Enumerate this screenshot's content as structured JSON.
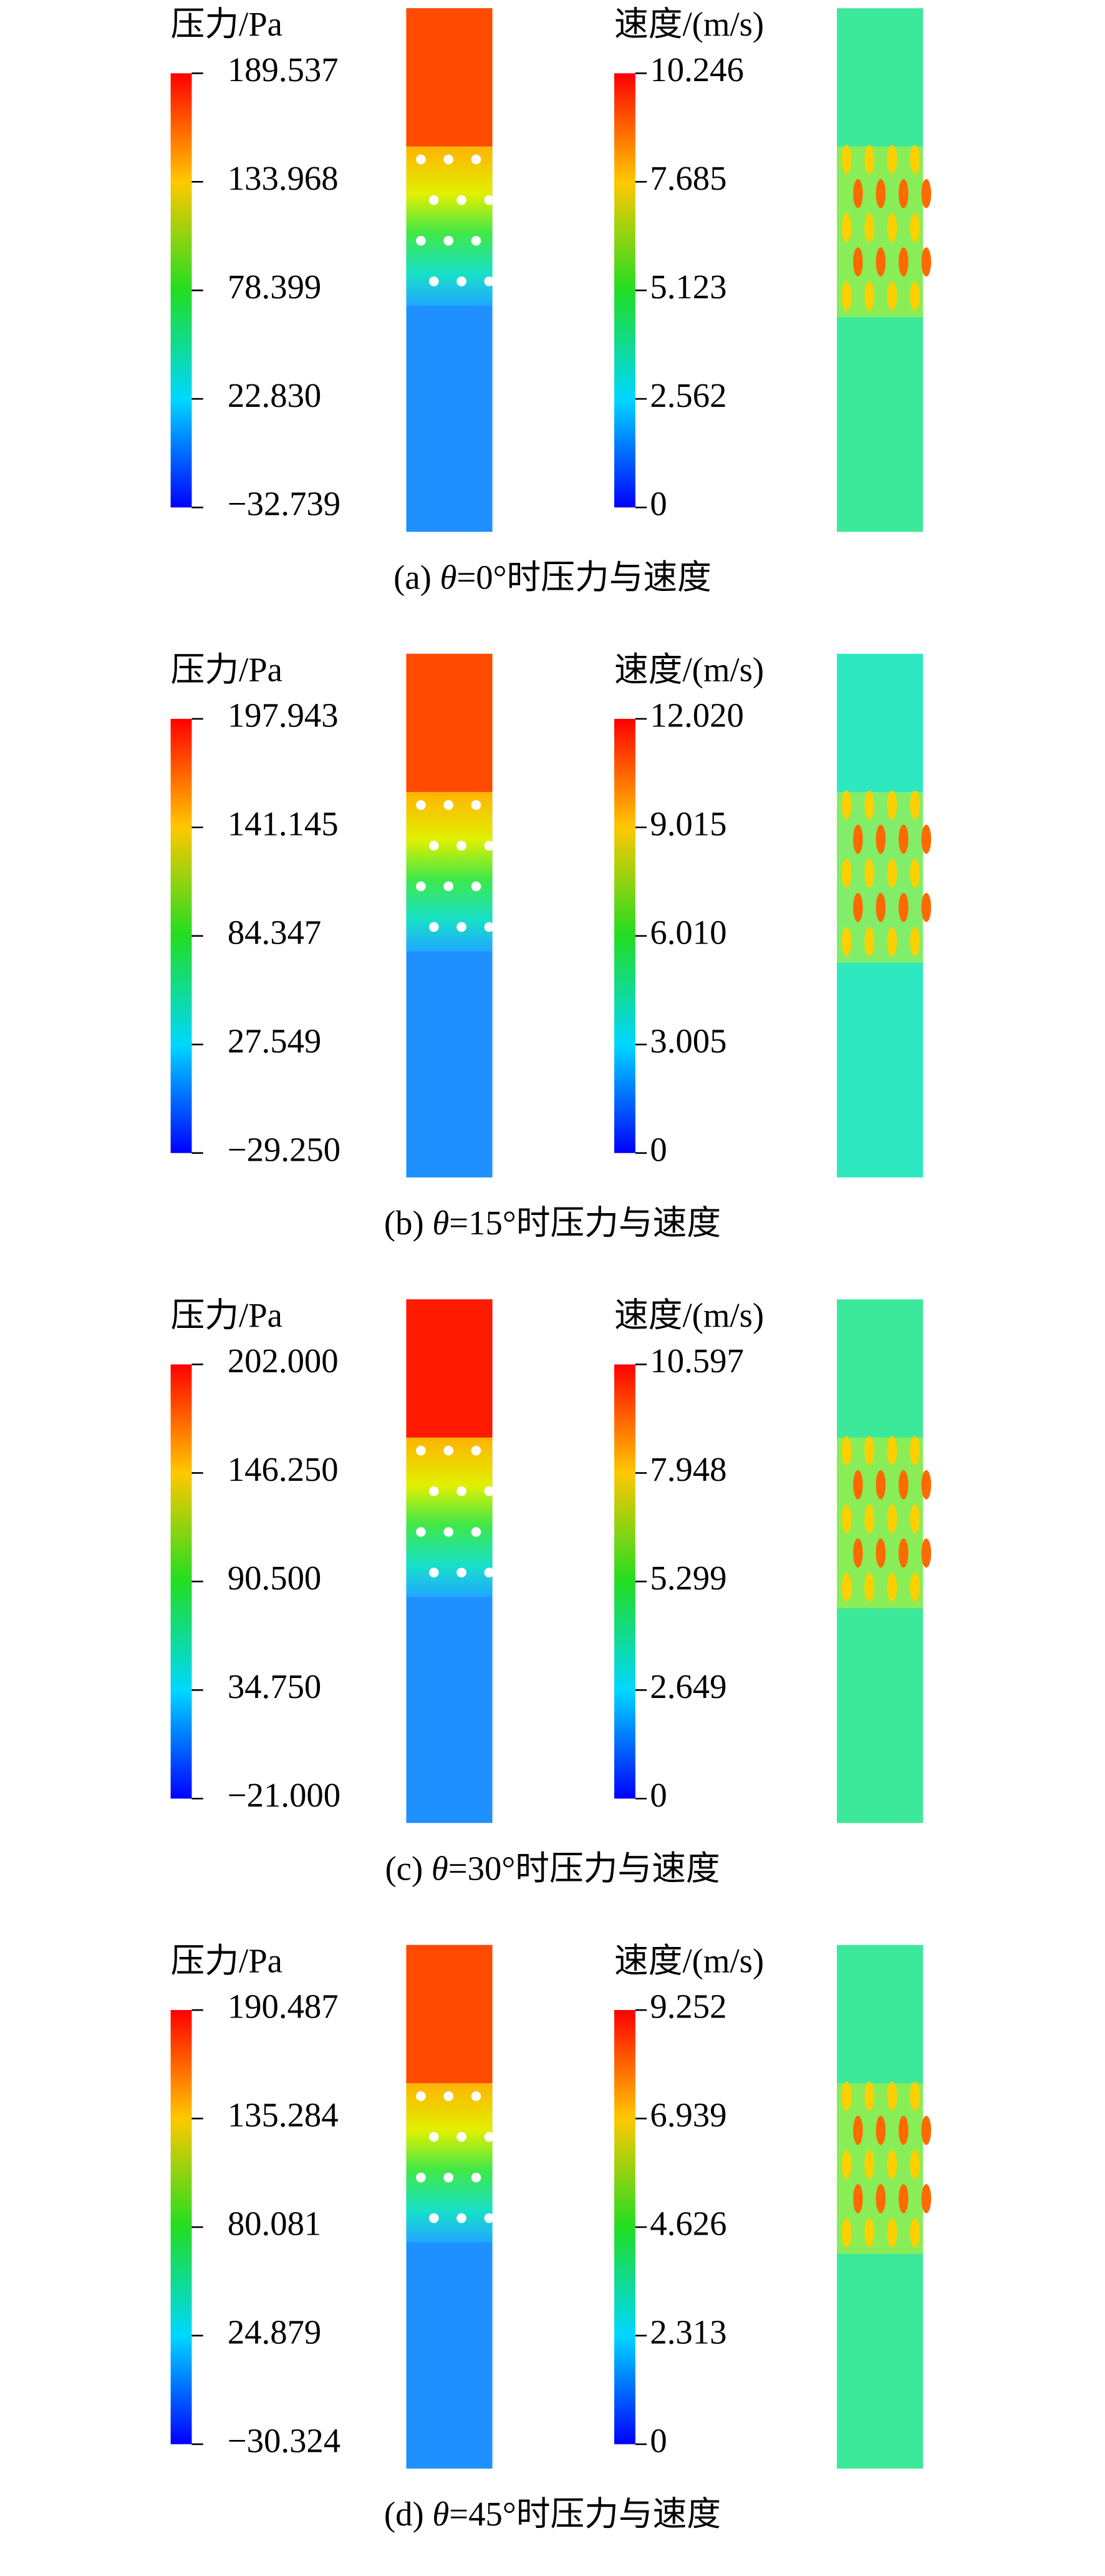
{
  "panels": [
    {
      "pressure": {
        "title": "压力/Pa",
        "ticks": [
          "189.537",
          "133.968",
          "78.399",
          "22.830",
          "−32.739"
        ]
      },
      "velocity": {
        "title": "速度/(m/s)",
        "ticks": [
          "10.246",
          "7.685",
          "5.123",
          "2.562",
          "0"
        ]
      },
      "caption": {
        "prefix": "(a) ",
        "symbol": "θ",
        "suffix": "=0°时压力与速度"
      }
    },
    {
      "pressure": {
        "title": "压力/Pa",
        "ticks": [
          "197.943",
          "141.145",
          "84.347",
          "27.549",
          "−29.250"
        ]
      },
      "velocity": {
        "title": "速度/(m/s)",
        "ticks": [
          "12.020",
          "9.015",
          "6.010",
          "3.005",
          "0"
        ]
      },
      "caption": {
        "prefix": "(b) ",
        "symbol": "θ",
        "suffix": "=15°时压力与速度"
      }
    },
    {
      "pressure": {
        "title": "压力/Pa",
        "ticks": [
          "202.000",
          "146.250",
          "90.500",
          "34.750",
          "−21.000"
        ]
      },
      "velocity": {
        "title": "速度/(m/s)",
        "ticks": [
          "10.597",
          "7.948",
          "5.299",
          "2.649",
          "0"
        ]
      },
      "caption": {
        "prefix": "(c) ",
        "symbol": "θ",
        "suffix": "=30°时压力与速度"
      }
    },
    {
      "pressure": {
        "title": "压力/Pa",
        "ticks": [
          "190.487",
          "135.284",
          "80.081",
          "24.879",
          "−30.324"
        ]
      },
      "velocity": {
        "title": "速度/(m/s)",
        "ticks": [
          "9.252",
          "6.939",
          "4.626",
          "2.313",
          "0"
        ]
      },
      "caption": {
        "prefix": "(d) ",
        "symbol": "θ",
        "suffix": "=45°时压力与速度"
      }
    }
  ]
}
